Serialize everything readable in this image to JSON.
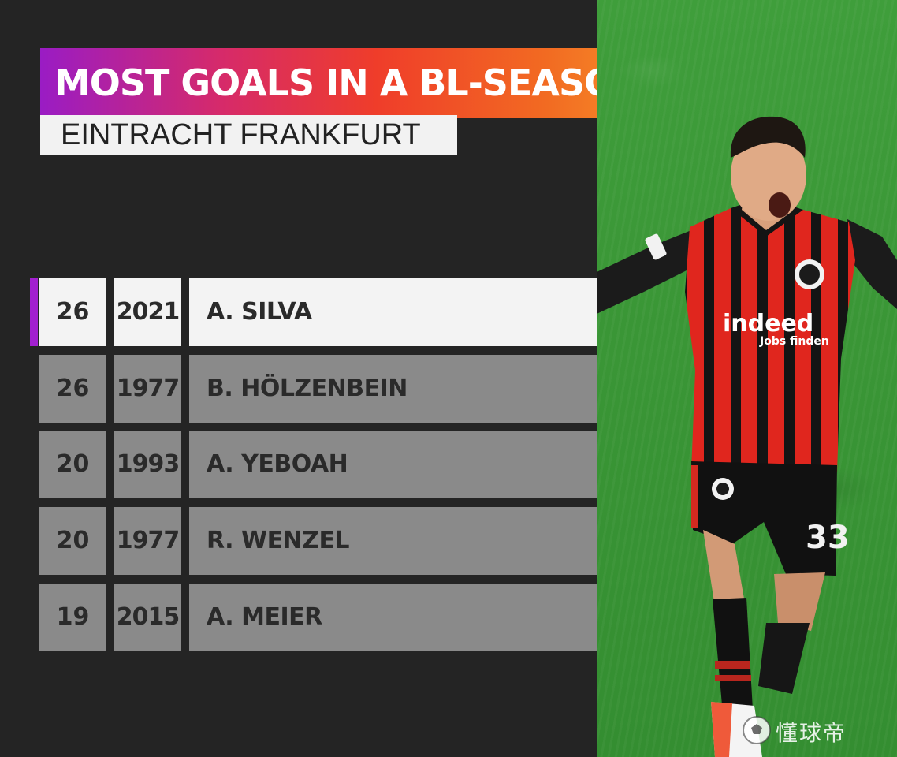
{
  "title": "MOST GOALS IN  A BL-SEASON",
  "subtitle": "EINTRACHT FRANKFURT",
  "rows": [
    {
      "goals": "26",
      "year": "2021",
      "name": "A. SILVA"
    },
    {
      "goals": "26",
      "year": "1977",
      "name": "B. HÖLZENBEIN"
    },
    {
      "goals": "20",
      "year": "1993",
      "name": "A. YEBOAH"
    },
    {
      "goals": "20",
      "year": "1977",
      "name": "R. WENZEL"
    },
    {
      "goals": "19",
      "year": "2015",
      "name": "A. MEIER"
    }
  ],
  "photo": {
    "shirt_sponsor": "indeed",
    "shirt_sponsor_tag": "Jobs finden",
    "shirt_number": "33"
  },
  "watermark": "懂球帝",
  "colors": {
    "background": "#242424",
    "title_gradient_start": "#9a1cc4",
    "title_gradient_end": "#f79a2a",
    "highlight_row": "#f3f3f3",
    "dim_row": "#8a8a8a",
    "accent": "#a21fcf"
  }
}
